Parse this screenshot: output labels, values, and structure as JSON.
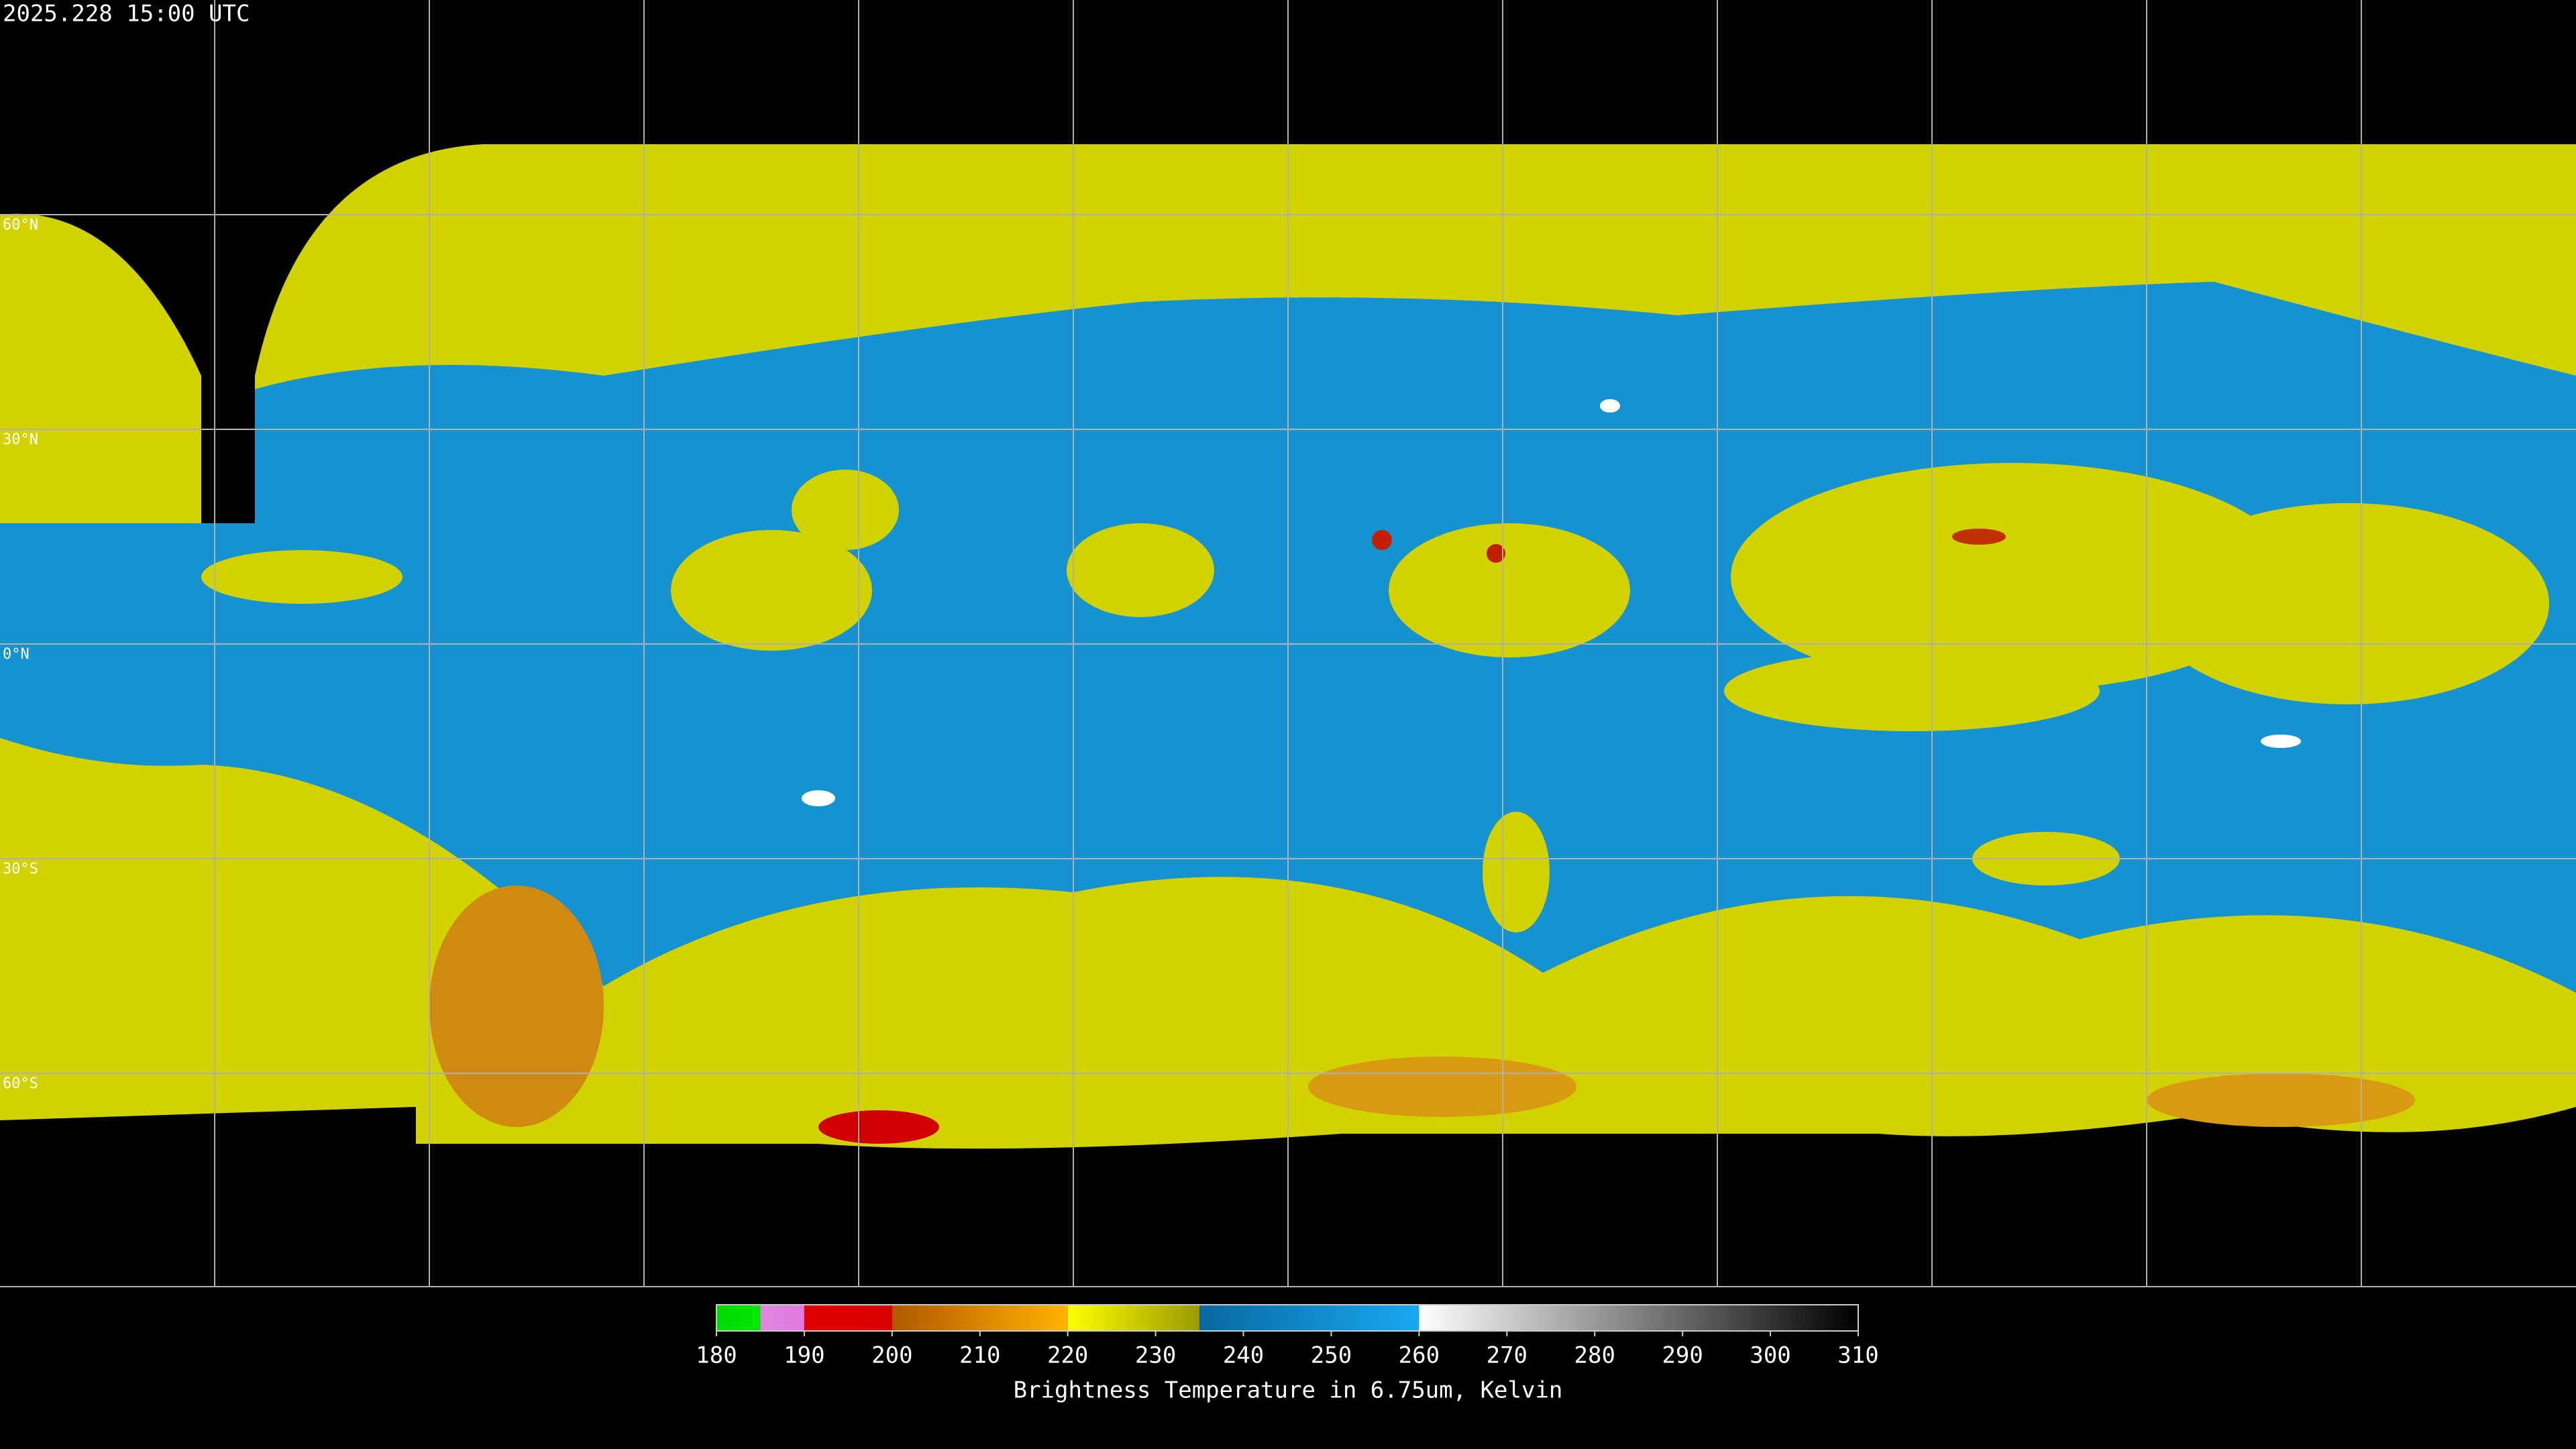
{
  "timestamp": "2025.228 15:00 UTC",
  "latitude_labels": [
    "60°N",
    "30°N",
    "0°N",
    "30°S",
    "60°S"
  ],
  "colorbar": {
    "ticks": [
      180,
      190,
      200,
      210,
      220,
      230,
      240,
      250,
      260,
      270,
      280,
      290,
      300,
      310
    ],
    "segments": [
      {
        "from": 180,
        "to": 185,
        "colors": [
          "#00d800",
          "#00e800"
        ]
      },
      {
        "from": 185,
        "to": 190,
        "colors": [
          "#e088e0",
          "#e078e0"
        ]
      },
      {
        "from": 190,
        "to": 200,
        "colors": [
          "#e00000",
          "#d80000"
        ]
      },
      {
        "from": 200,
        "to": 220,
        "colors": [
          "#b05800",
          "#ffb400"
        ]
      },
      {
        "from": 220,
        "to": 235,
        "colors": [
          "#ffff00",
          "#9a9a00"
        ]
      },
      {
        "from": 235,
        "to": 260,
        "colors": [
          "#0868a0",
          "#18a8f0"
        ]
      },
      {
        "from": 260,
        "to": 310,
        "colors": [
          "#ffffff",
          "#000000"
        ]
      }
    ],
    "label": "Brightness Temperature in 6.75um, Kelvin"
  }
}
